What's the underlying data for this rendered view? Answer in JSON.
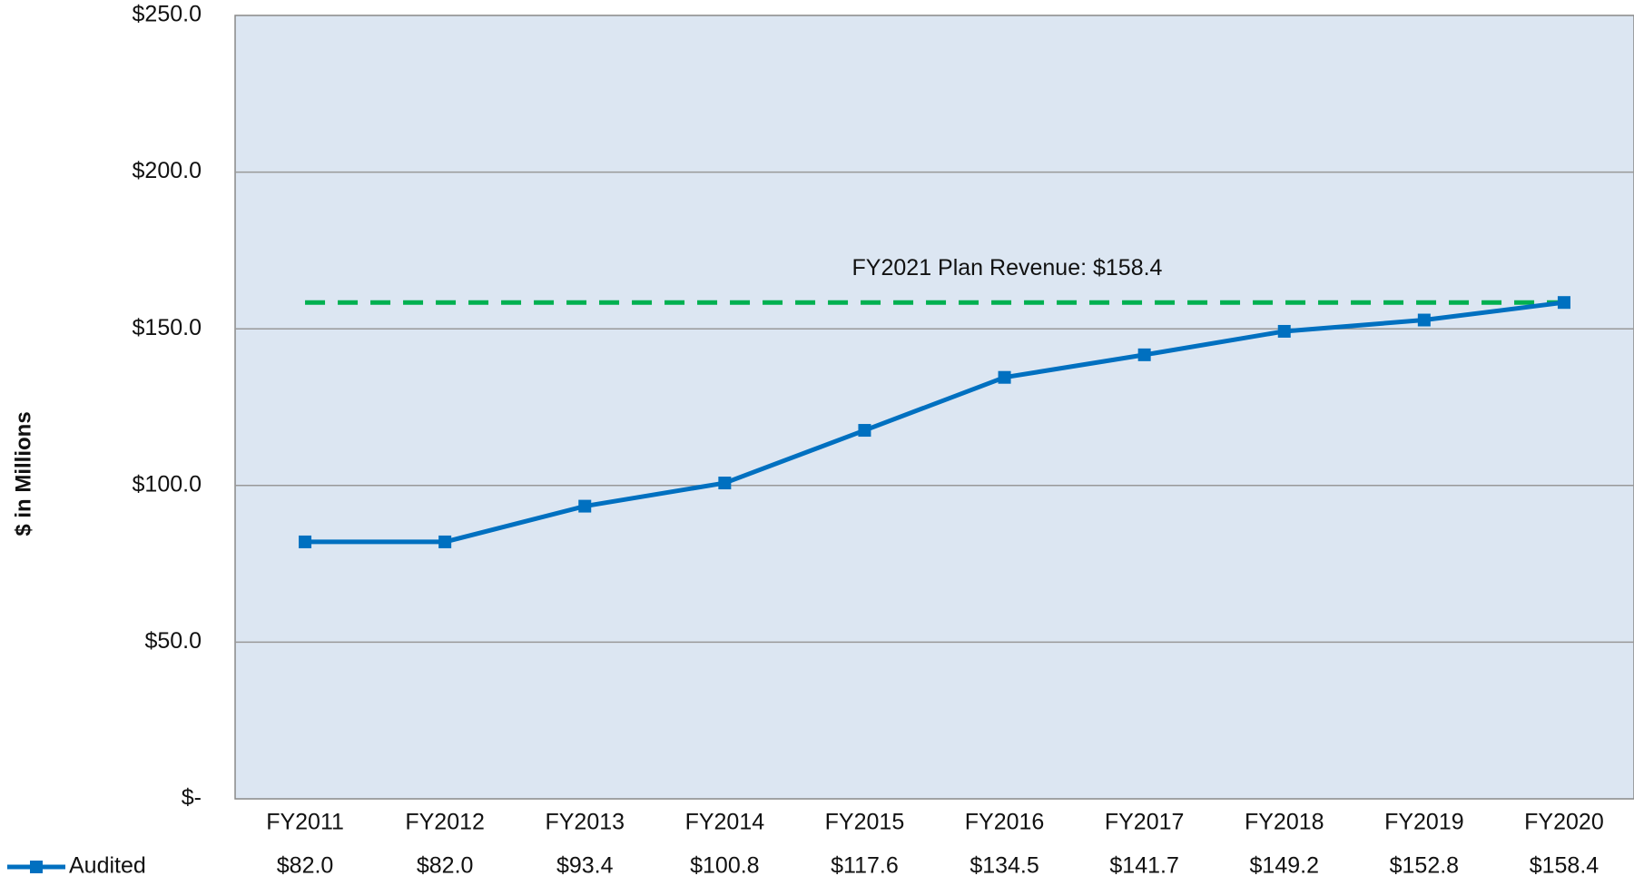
{
  "chart_data": {
    "type": "line",
    "y_label": "$ in Millions",
    "categories": [
      "FY2011",
      "FY2012",
      "FY2013",
      "FY2014",
      "FY2015",
      "FY2016",
      "FY2017",
      "FY2018",
      "FY2019",
      "FY2020"
    ],
    "series": [
      {
        "name": "Audited",
        "color": "#0070c0",
        "values": [
          82.0,
          82.0,
          93.4,
          100.8,
          117.6,
          134.5,
          141.7,
          149.2,
          152.8,
          158.4
        ],
        "value_labels": [
          "$82.0",
          "$82.0",
          "$93.4",
          "$100.8",
          "$117.6",
          "$134.5",
          "$141.7",
          "$149.2",
          "$152.8",
          "$158.4"
        ]
      }
    ],
    "reference_line": {
      "value": 158.4,
      "label": "FY2021 Plan Revenue: $158.4",
      "color": "#00b050"
    },
    "ylim": [
      0,
      250
    ],
    "yticks": [
      {
        "value": 0,
        "label": "$-"
      },
      {
        "value": 50,
        "label": "$50.0"
      },
      {
        "value": 100,
        "label": "$100.0"
      },
      {
        "value": 150,
        "label": "$150.0"
      },
      {
        "value": 200,
        "label": "$200.0"
      },
      {
        "value": 250,
        "label": "$250.0"
      }
    ],
    "grid": true
  }
}
